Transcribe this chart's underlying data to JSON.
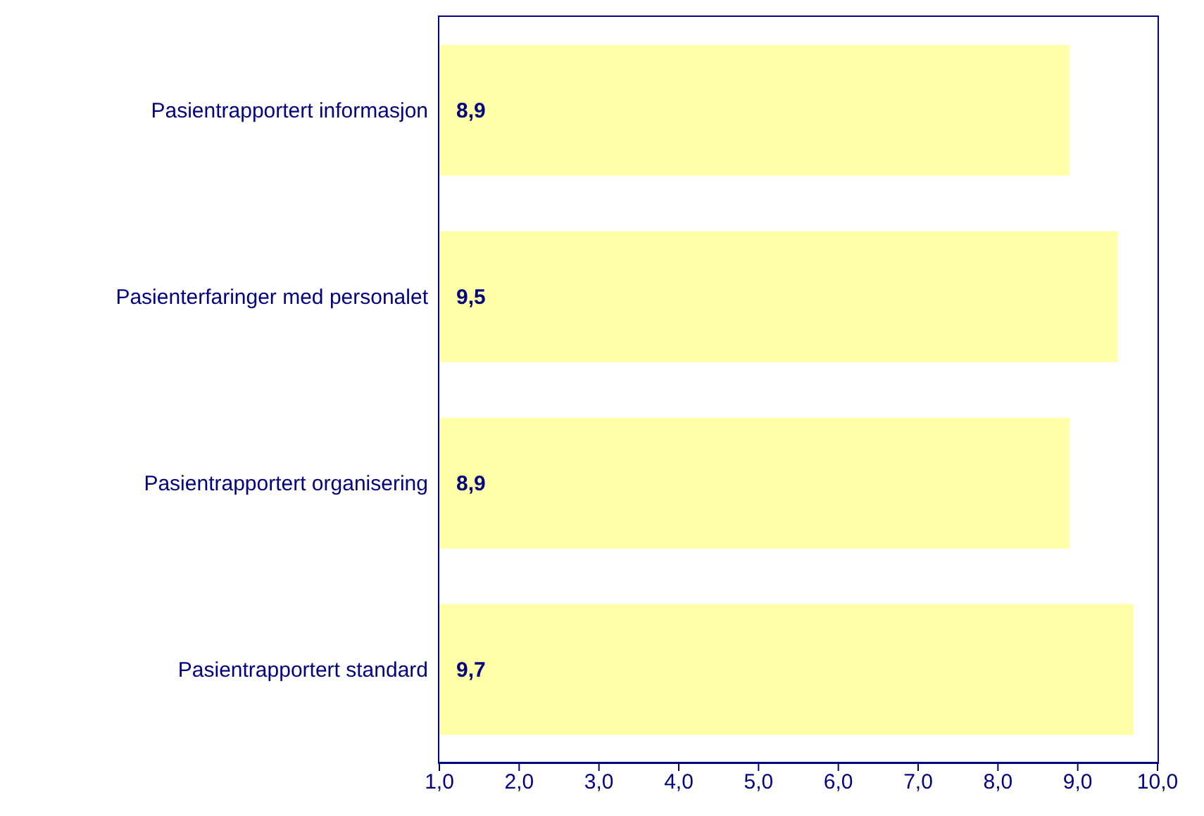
{
  "chart_data": {
    "type": "bar",
    "orientation": "horizontal",
    "categories": [
      "Pasientrapportert informasjon",
      "Pasienterfaringer med personalet",
      "Pasientrapportert organisering",
      "Pasientrapportert standard"
    ],
    "values": [
      8.9,
      9.5,
      8.9,
      9.7
    ],
    "value_labels": [
      "8,9",
      "9,5",
      "8,9",
      "9,7"
    ],
    "color": "#ffffa8",
    "xlim": [
      1,
      10
    ],
    "xticks": [
      {
        "value": 1,
        "label": "1,0"
      },
      {
        "value": 2,
        "label": "2,0"
      },
      {
        "value": 3,
        "label": "3,0"
      },
      {
        "value": 4,
        "label": "4,0"
      },
      {
        "value": 5,
        "label": "5,0"
      },
      {
        "value": 6,
        "label": "6,0"
      },
      {
        "value": 7,
        "label": "7,0"
      },
      {
        "value": 8,
        "label": "8,0"
      },
      {
        "value": 9,
        "label": "9,0"
      },
      {
        "value": 10,
        "label": "10,0"
      }
    ],
    "grid": false
  }
}
